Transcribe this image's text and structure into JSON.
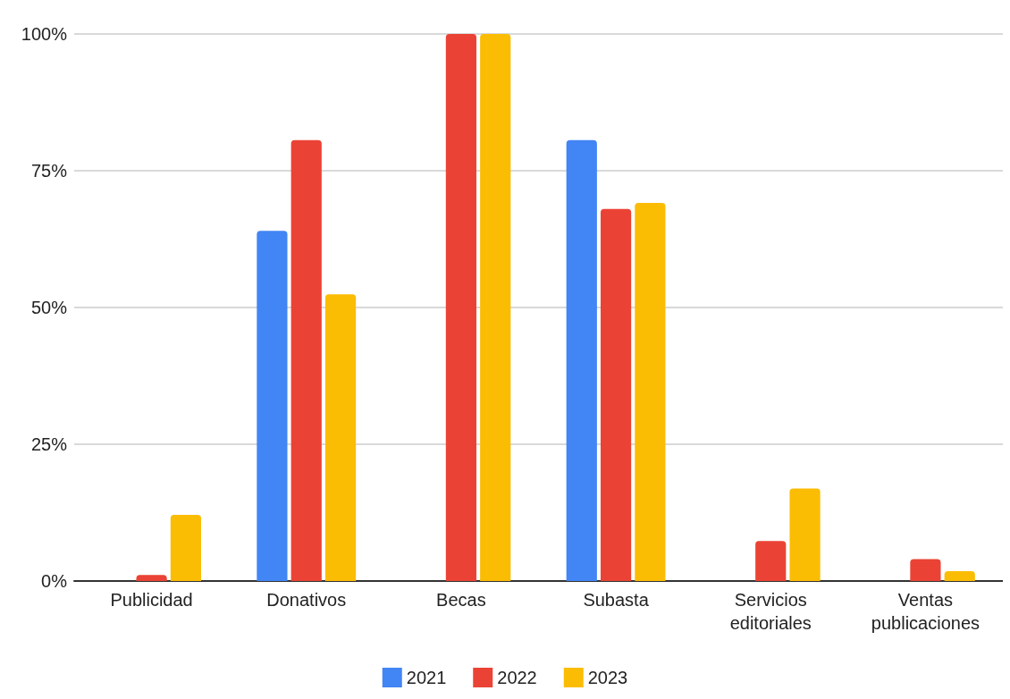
{
  "chart_data": {
    "type": "bar",
    "categories": [
      "Publicidad",
      "Donativos",
      "Becas",
      "Subasta",
      "Servicios editoriales",
      "Ventas publicaciones"
    ],
    "series": [
      {
        "name": "2021",
        "color": "#4285f4",
        "values": [
          0,
          64,
          0,
          80.6,
          0,
          0
        ]
      },
      {
        "name": "2022",
        "color": "#ea4335",
        "values": [
          1.1,
          80.6,
          100,
          68,
          7.3,
          4
        ]
      },
      {
        "name": "2023",
        "color": "#fbbc04",
        "values": [
          12.1,
          52.4,
          100,
          69.1,
          16.9,
          1.8
        ]
      }
    ],
    "ylim": [
      0,
      100
    ],
    "yticks": [
      {
        "value": 0,
        "label": "0%"
      },
      {
        "value": 25,
        "label": "25%"
      },
      {
        "value": 50,
        "label": "50%"
      },
      {
        "value": 75,
        "label": "75%"
      },
      {
        "value": 100,
        "label": "100%"
      }
    ],
    "grid": "y",
    "legend": "bottom"
  }
}
